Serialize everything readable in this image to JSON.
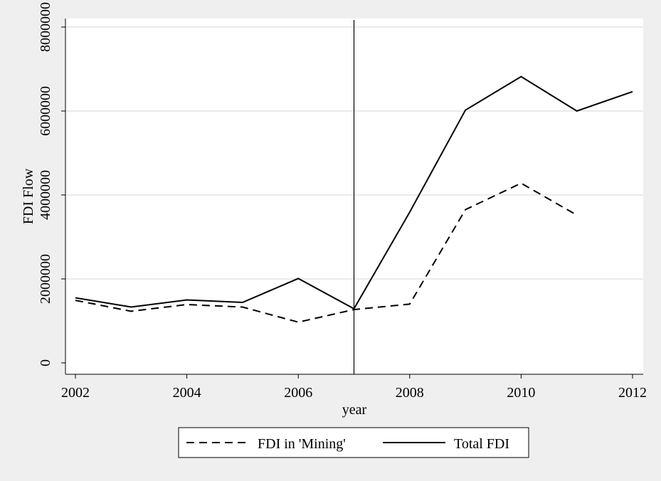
{
  "chart_data": {
    "type": "line",
    "title": "",
    "xlabel": "year",
    "ylabel": "FDI Flow",
    "xlim": [
      2002,
      2012
    ],
    "ylim": [
      0,
      8000000
    ],
    "x_ticks": [
      2002,
      2004,
      2006,
      2008,
      2010,
      2012
    ],
    "y_ticks": [
      0,
      2000000,
      4000000,
      6000000,
      8000000
    ],
    "x_tick_labels": [
      "2002",
      "2004",
      "2006",
      "2008",
      "2010",
      "2012"
    ],
    "y_tick_labels": [
      "0",
      "2000000",
      "4000000",
      "6000000",
      "8000000"
    ],
    "grid": "horizontal",
    "legend_position": "bottom",
    "reference_line_x": 2007,
    "series": [
      {
        "name": "FDI in 'Mining'",
        "style": "dashed",
        "color": "#000000",
        "x": [
          2002,
          2003,
          2004,
          2005,
          2006,
          2007,
          2008,
          2009,
          2010,
          2011
        ],
        "values": [
          1490000,
          1230000,
          1390000,
          1330000,
          970000,
          1270000,
          1400000,
          3650000,
          4280000,
          3520000
        ]
      },
      {
        "name": "Total FDI",
        "style": "solid",
        "color": "#000000",
        "x": [
          2002,
          2003,
          2004,
          2005,
          2006,
          2007,
          2008,
          2009,
          2010,
          2011,
          2012
        ],
        "values": [
          1550000,
          1330000,
          1500000,
          1440000,
          2010000,
          1290000,
          3590000,
          6020000,
          6820000,
          6000000,
          6460000
        ]
      }
    ]
  },
  "colors": {
    "background": "#efefef",
    "plot_background": "#ffffff",
    "grid": "#e3e3e3",
    "line": "#000000"
  }
}
